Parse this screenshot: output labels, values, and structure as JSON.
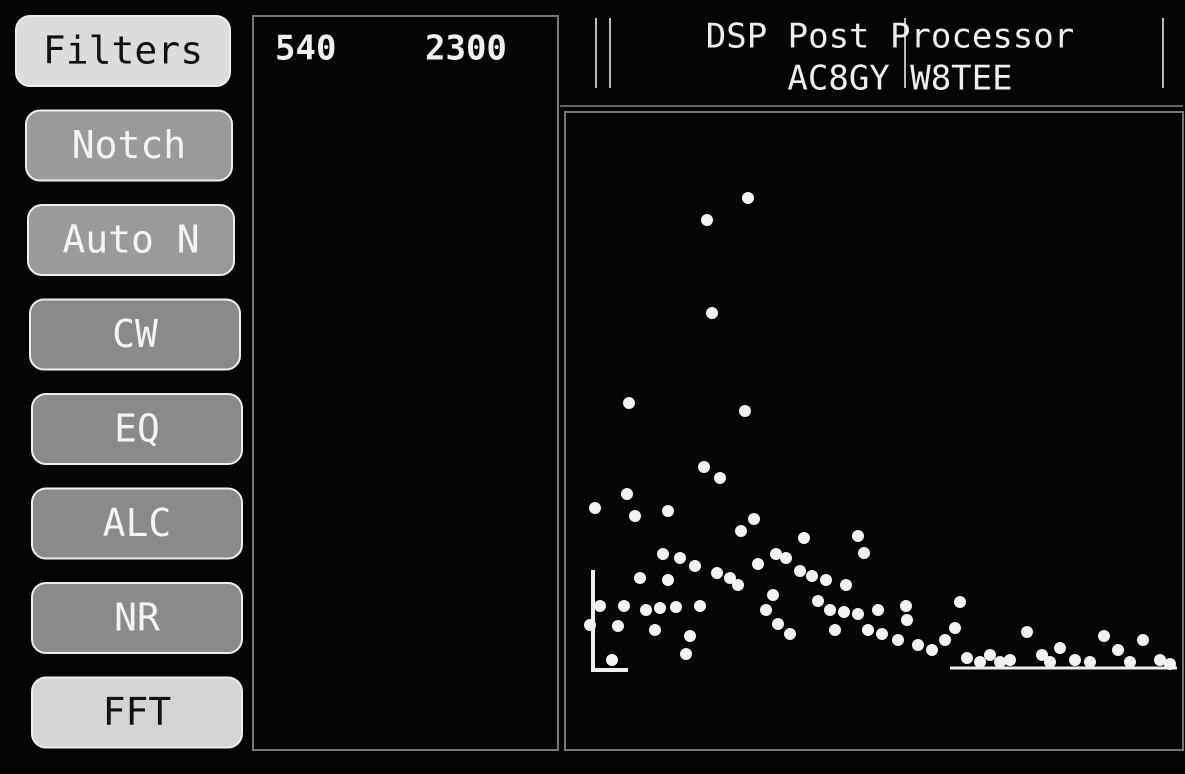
{
  "buttons": [
    "Filters",
    "Notch",
    "Auto N",
    "CW",
    "EQ",
    "ALC",
    "NR",
    "FFT"
  ],
  "filter": {
    "low": 540,
    "high": 2300
  },
  "header": {
    "title": "DSP Post Processor",
    "subtitle": "AC8GY W8TEE"
  }
}
